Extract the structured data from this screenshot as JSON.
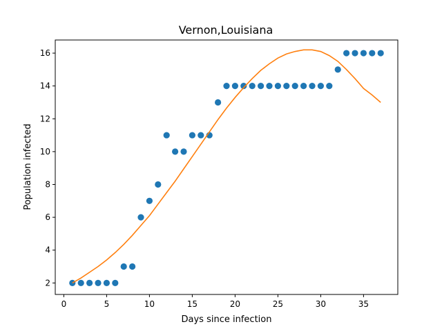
{
  "chart_data": {
    "type": "scatter",
    "title": "Vernon,Louisiana",
    "xlabel": "Days since infection",
    "ylabel": "Population infected",
    "xlim": [
      -1,
      39
    ],
    "ylim": [
      1.3,
      16.8
    ],
    "xticks": [
      0,
      5,
      10,
      15,
      20,
      25,
      30,
      35
    ],
    "yticks": [
      2,
      4,
      6,
      8,
      10,
      12,
      14,
      16
    ],
    "grid": false,
    "legend": "none",
    "series": [
      {
        "kind": "scatter",
        "color": "#1f77b4",
        "x": [
          1,
          2,
          3,
          4,
          5,
          6,
          7,
          8,
          9,
          10,
          11,
          12,
          13,
          14,
          15,
          16,
          17,
          18,
          19,
          20,
          21,
          22,
          23,
          24,
          25,
          26,
          27,
          28,
          29,
          30,
          31,
          32,
          33,
          34,
          35,
          36,
          37
        ],
        "y": [
          2,
          2,
          2,
          2,
          2,
          2,
          3,
          3,
          6,
          7,
          8,
          11,
          10,
          10,
          11,
          11,
          11,
          13,
          14,
          14,
          14,
          14,
          14,
          14,
          14,
          14,
          14,
          14,
          14,
          14,
          14,
          15,
          16,
          16,
          16,
          16,
          16
        ]
      },
      {
        "kind": "line",
        "color": "#ff7f0e",
        "x": [
          1,
          2,
          3,
          4,
          5,
          6,
          7,
          8,
          9,
          10,
          11,
          12,
          13,
          14,
          15,
          16,
          17,
          18,
          19,
          20,
          21,
          22,
          23,
          24,
          25,
          26,
          27,
          28,
          29,
          30,
          31,
          32,
          33,
          34,
          35,
          36,
          37
        ],
        "y": [
          2.0,
          2.3,
          2.65,
          3.0,
          3.4,
          3.85,
          4.35,
          4.9,
          5.5,
          6.1,
          6.8,
          7.5,
          8.2,
          8.95,
          9.7,
          10.45,
          11.2,
          11.95,
          12.65,
          13.3,
          13.9,
          14.45,
          14.95,
          15.35,
          15.7,
          15.95,
          16.1,
          16.2,
          16.2,
          16.1,
          15.85,
          15.5,
          15.0,
          14.45,
          13.85,
          13.45,
          13.0
        ]
      }
    ]
  }
}
